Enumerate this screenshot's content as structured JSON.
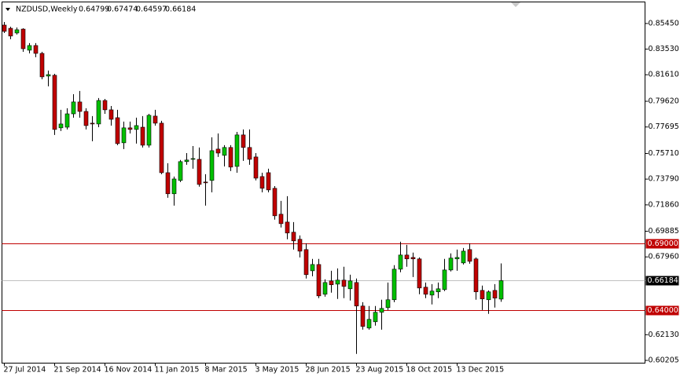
{
  "chart_data": {
    "type": "candlestick",
    "title": "NZDUSD,Weekly",
    "categories": [
      "27 Jul 2014",
      null,
      null,
      null,
      null,
      null,
      null,
      null,
      "21 Sep 2014",
      null,
      null,
      null,
      null,
      null,
      null,
      null,
      "16 Nov 2014",
      null,
      null,
      null,
      null,
      null,
      null,
      null,
      "11 Jan 2015",
      null,
      null,
      null,
      null,
      null,
      null,
      null,
      "8 Mar 2015",
      null,
      null,
      null,
      null,
      null,
      null,
      null,
      "3 May 2015",
      null,
      null,
      null,
      null,
      null,
      null,
      null,
      "28 Jun 2015",
      null,
      null,
      null,
      null,
      null,
      null,
      null,
      "23 Aug 2015",
      null,
      null,
      null,
      null,
      null,
      null,
      null,
      "18 Oct 2015",
      null,
      null,
      null,
      null,
      null,
      null,
      null,
      "13 Dec 2015",
      null,
      null,
      null,
      null,
      null,
      null,
      null
    ],
    "open": [
      0.8533,
      0.8509,
      0.8474,
      0.8503,
      0.8345,
      0.838,
      0.8321,
      0.8151,
      0.8157,
      0.7763,
      0.7768,
      0.7868,
      0.7957,
      0.7886,
      0.7798,
      0.7792,
      0.7968,
      0.7898,
      0.7839,
      0.7651,
      0.7763,
      0.7751,
      0.7768,
      0.7633,
      0.7851,
      0.7798,
      0.7427,
      0.7269,
      0.7369,
      0.751,
      0.7527,
      0.7527,
      0.7357,
      0.7369,
      0.7604,
      0.7557,
      0.7616,
      0.7474,
      0.771,
      0.7616,
      0.7545,
      0.7398,
      0.7427,
      0.731,
      0.7116,
      0.7057,
      0.6981,
      0.6928,
      0.6851,
      0.6692,
      0.6739,
      0.6516,
      0.6616,
      0.6592,
      0.6622,
      0.6557,
      0.6604,
      0.6428,
      0.6263,
      0.631,
      0.6381,
      0.6416,
      0.6475,
      0.6704,
      0.681,
      0.6792,
      0.6781,
      0.6569,
      0.651,
      0.6534,
      0.6551,
      0.6698,
      0.6781,
      0.6751,
      0.6851,
      0.6781,
      0.6545,
      0.6475,
      0.6545,
      0.64799
    ],
    "high": [
      0.8556,
      0.8521,
      0.8515,
      0.8509,
      0.8398,
      0.8398,
      0.8333,
      0.8192,
      0.8168,
      0.7898,
      0.791,
      0.8015,
      0.8039,
      0.791,
      0.7851,
      0.7986,
      0.798,
      0.7927,
      0.7898,
      0.781,
      0.781,
      0.7839,
      0.7851,
      0.7868,
      0.7898,
      0.7816,
      0.7498,
      0.7398,
      0.7522,
      0.7574,
      0.7627,
      0.7616,
      0.7416,
      0.7692,
      0.7721,
      0.7633,
      0.7633,
      0.7733,
      0.7751,
      0.7751,
      0.7574,
      0.7427,
      0.7457,
      0.7327,
      0.7216,
      0.7251,
      0.7057,
      0.6957,
      0.6898,
      0.6781,
      0.6781,
      0.6628,
      0.6692,
      0.671,
      0.6722,
      0.6663,
      0.6634,
      0.6457,
      0.6428,
      0.6428,
      0.6475,
      0.6604,
      0.6734,
      0.691,
      0.6886,
      0.6828,
      0.6792,
      0.6604,
      0.6592,
      0.6604,
      0.6781,
      0.6822,
      0.6851,
      0.6863,
      0.6898,
      0.6792,
      0.6581,
      0.6545,
      0.6592,
      0.67474
    ],
    "low": [
      0.8474,
      0.8427,
      0.8462,
      0.8333,
      0.8321,
      0.8292,
      0.8127,
      0.8074,
      0.771,
      0.7739,
      0.7751,
      0.7839,
      0.7839,
      0.7751,
      0.7663,
      0.7768,
      0.7868,
      0.778,
      0.7633,
      0.7604,
      0.7721,
      0.7645,
      0.7616,
      0.7616,
      0.778,
      0.7416,
      0.7239,
      0.718,
      0.7357,
      0.7486,
      0.7457,
      0.7322,
      0.718,
      0.728,
      0.7545,
      0.7474,
      0.7439,
      0.7427,
      0.7516,
      0.7486,
      0.7369,
      0.728,
      0.728,
      0.7075,
      0.7016,
      0.6928,
      0.6851,
      0.6792,
      0.6634,
      0.6651,
      0.6487,
      0.6498,
      0.6528,
      0.6481,
      0.6487,
      0.6469,
      0.6069,
      0.6251,
      0.6251,
      0.6281,
      0.6251,
      0.6398,
      0.6457,
      0.6681,
      0.6722,
      0.6645,
      0.6516,
      0.6487,
      0.644,
      0.6487,
      0.654,
      0.6687,
      0.6692,
      0.6739,
      0.6745,
      0.6475,
      0.6398,
      0.6369,
      0.6416,
      0.64597
    ],
    "close": [
      0.8486,
      0.8451,
      0.8498,
      0.8356,
      0.838,
      0.8321,
      0.8145,
      0.8162,
      0.7751,
      0.7792,
      0.7868,
      0.7957,
      0.7886,
      0.778,
      0.7792,
      0.7968,
      0.7898,
      0.7827,
      0.7645,
      0.7763,
      0.7751,
      0.778,
      0.7633,
      0.7857,
      0.7798,
      0.7427,
      0.7269,
      0.738,
      0.751,
      0.7522,
      0.7533,
      0.7339,
      0.7351,
      0.7592,
      0.7574,
      0.7616,
      0.7469,
      0.771,
      0.7616,
      0.7527,
      0.7386,
      0.731,
      0.7298,
      0.7104,
      0.7045,
      0.6975,
      0.6916,
      0.6839,
      0.6663,
      0.6739,
      0.6504,
      0.6604,
      0.6587,
      0.6622,
      0.6575,
      0.6616,
      0.6428,
      0.6275,
      0.6328,
      0.6381,
      0.641,
      0.6475,
      0.6704,
      0.681,
      0.6781,
      0.6781,
      0.6563,
      0.6516,
      0.654,
      0.6557,
      0.6698,
      0.6787,
      0.6792,
      0.6839,
      0.6763,
      0.6534,
      0.6481,
      0.6534,
      0.6487,
      0.66184
    ],
    "up_color": "#00c000",
    "down_color": "#c00000",
    "ylim": [
      0.6003,
      0.8721
    ],
    "yticks": [
      {
        "value": 0.8545,
        "label": "0.85450"
      },
      {
        "value": 0.8353,
        "label": "0.83530"
      },
      {
        "value": 0.8161,
        "label": "0.81610"
      },
      {
        "value": 0.7962,
        "label": "0.79620"
      },
      {
        "value": 0.77695,
        "label": "0.77695"
      },
      {
        "value": 0.7571,
        "label": "0.75710"
      },
      {
        "value": 0.7379,
        "label": "0.73790"
      },
      {
        "value": 0.7186,
        "label": "0.71860"
      },
      {
        "value": 0.69885,
        "label": "0.69885"
      },
      {
        "value": 0.6796,
        "label": "0.67960"
      },
      {
        "value": 0.6213,
        "label": "0.62130"
      },
      {
        "value": 0.60205,
        "label": "0.60205"
      }
    ],
    "hlines": [
      {
        "value": 0.69,
        "label": "0.69000",
        "color": "#c00000"
      },
      {
        "value": 0.66184,
        "label": "0.66184",
        "color": "#c0c0c0"
      },
      {
        "value": 0.64,
        "label": "0.64000",
        "color": "#c00000"
      }
    ]
  }
}
